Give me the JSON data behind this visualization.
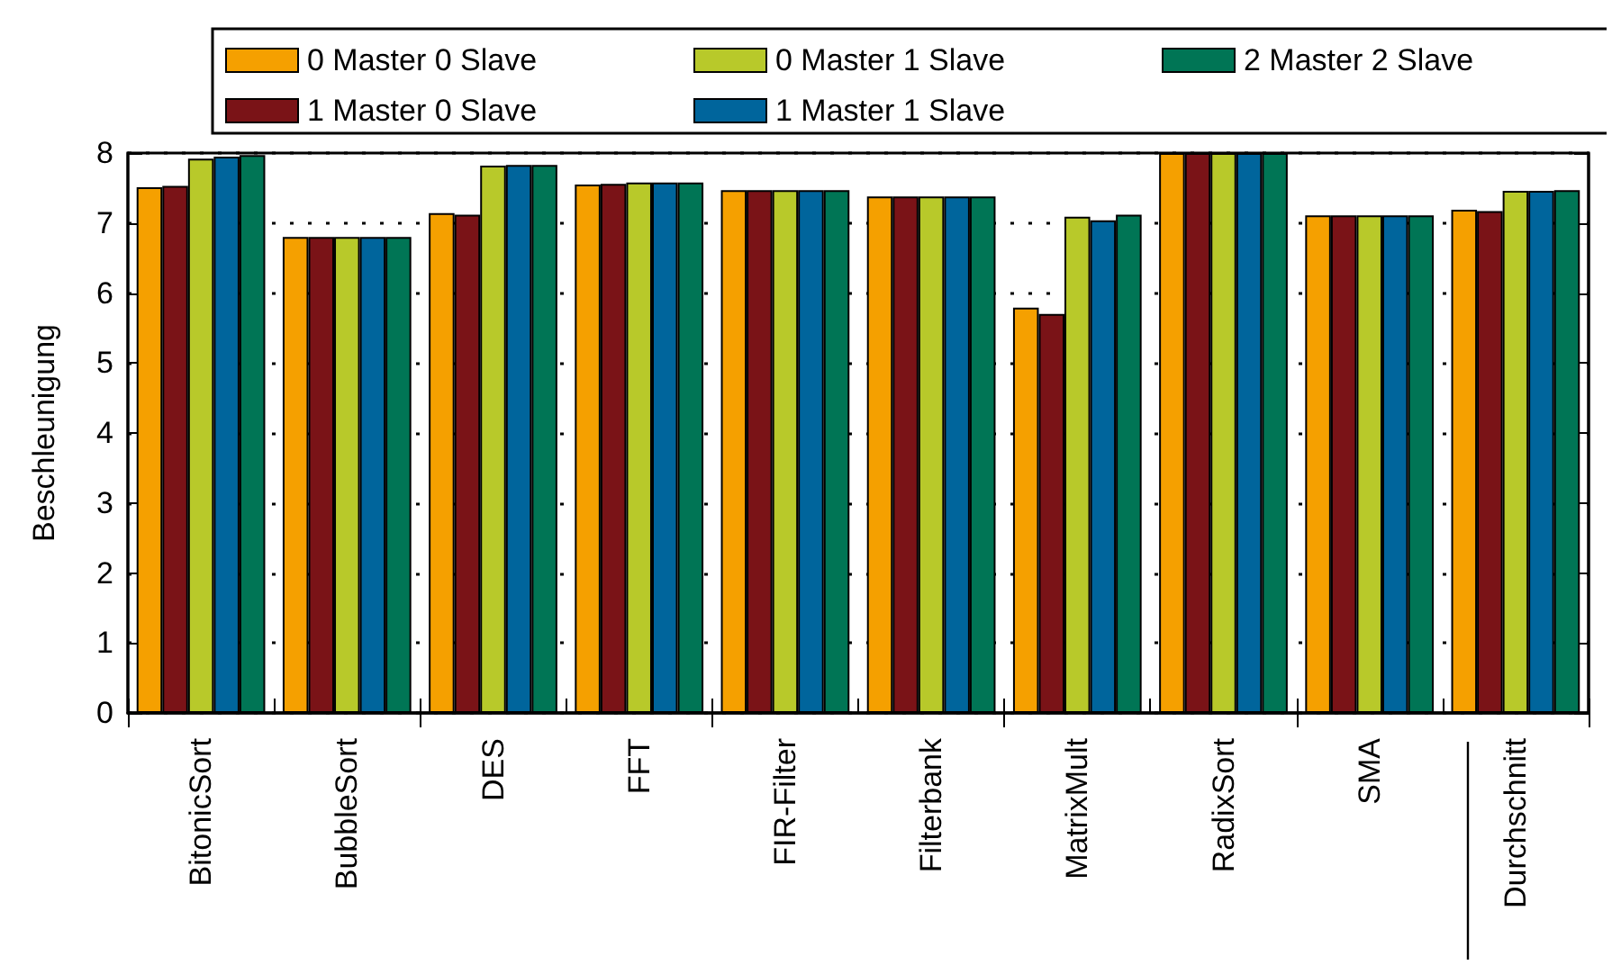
{
  "chart_data": {
    "type": "bar",
    "ylabel": "Beschleunigung",
    "categories": [
      "BitonicSort",
      "BubbleSort",
      "DES",
      "FFT",
      "FIR-Filter",
      "Filterbank",
      "MatrixMult",
      "RadixSort",
      "SMA",
      "Durchschnitt"
    ],
    "series": [
      {
        "name": "0 Master 0 Slave",
        "color": "#f5a000",
        "values": [
          7.51,
          6.8,
          7.14,
          7.55,
          7.47,
          7.38,
          5.79,
          8,
          7.11,
          7.19
        ]
      },
      {
        "name": "1 Master 0 Slave",
        "color": "#7a1317",
        "values": [
          7.53,
          6.8,
          7.12,
          7.56,
          7.47,
          7.38,
          5.7,
          8,
          7.11,
          7.17
        ]
      },
      {
        "name": "0 Master 1 Slave",
        "color": "#b8c92a",
        "values": [
          7.92,
          6.8,
          7.82,
          7.58,
          7.47,
          7.38,
          7.09,
          8,
          7.11,
          7.46
        ]
      },
      {
        "name": "1 Master 1 Slave",
        "color": "#00659c",
        "values": [
          7.95,
          6.8,
          7.83,
          7.58,
          7.47,
          7.38,
          7.04,
          8,
          7.11,
          7.46
        ]
      },
      {
        "name": "2 Master 2 Slave",
        "color": "#007555",
        "values": [
          7.97,
          6.8,
          7.83,
          7.58,
          7.47,
          7.38,
          7.12,
          8,
          7.11,
          7.47
        ]
      }
    ],
    "ylim": [
      0,
      8
    ],
    "yticks": [
      0,
      1,
      2,
      3,
      4,
      5,
      6,
      7,
      8
    ],
    "grid": "y",
    "legend": "top"
  }
}
